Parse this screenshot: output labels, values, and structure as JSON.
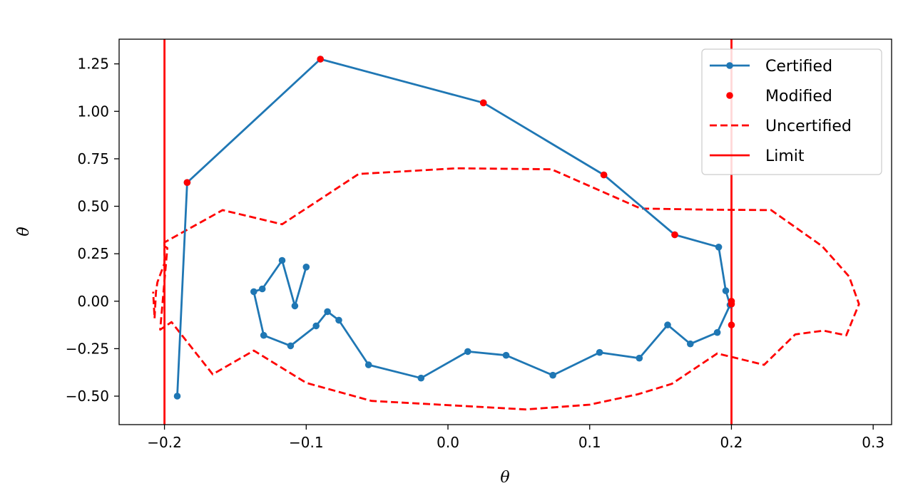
{
  "chart_data": {
    "type": "line",
    "title": "",
    "xlabel": "θ",
    "ylabel": "θ̇",
    "xlim": [
      -0.232,
      0.313
    ],
    "ylim": [
      -0.65,
      1.38
    ],
    "xticks": [
      -0.2,
      -0.1,
      0.0,
      0.1,
      0.2,
      0.3
    ],
    "xtick_labels": [
      "−0.2",
      "−0.1",
      "0.0",
      "0.1",
      "0.2",
      "0.3"
    ],
    "yticks": [
      -0.5,
      -0.25,
      0.0,
      0.25,
      0.5,
      0.75,
      1.0,
      1.25
    ],
    "ytick_labels": [
      "−0.50",
      "−0.25",
      "0.00",
      "0.25",
      "0.50",
      "0.75",
      "1.00",
      "1.25"
    ],
    "grid": false,
    "legend_position": "top-right",
    "series": [
      {
        "name": "Certified",
        "style": "line-with-markers",
        "color": "#1f77b4",
        "points": [
          [
            -0.1,
            0.18
          ],
          [
            -0.108,
            -0.025
          ],
          [
            -0.117,
            0.215
          ],
          [
            -0.131,
            0.065
          ],
          [
            -0.137,
            0.05
          ],
          [
            -0.13,
            -0.18
          ],
          [
            -0.111,
            -0.235
          ],
          [
            -0.093,
            -0.13
          ],
          [
            -0.085,
            -0.055
          ],
          [
            -0.077,
            -0.1
          ],
          [
            -0.056,
            -0.335
          ],
          [
            -0.019,
            -0.405
          ],
          [
            0.014,
            -0.265
          ],
          [
            0.041,
            -0.285
          ],
          [
            0.074,
            -0.39
          ],
          [
            0.107,
            -0.27
          ],
          [
            0.135,
            -0.3
          ],
          [
            0.155,
            -0.125
          ],
          [
            0.171,
            -0.225
          ],
          [
            0.19,
            -0.165
          ],
          [
            0.199,
            -0.02
          ],
          [
            0.196,
            0.055
          ],
          [
            0.191,
            0.285
          ],
          [
            0.16,
            0.35
          ],
          [
            0.11,
            0.665
          ],
          [
            0.025,
            1.045
          ],
          [
            -0.09,
            1.275
          ],
          [
            -0.184,
            0.625
          ],
          [
            -0.191,
            -0.5
          ]
        ]
      },
      {
        "name": "Modified",
        "style": "markers",
        "color": "#ff0000",
        "points": [
          [
            0.16,
            0.35
          ],
          [
            0.11,
            0.665
          ],
          [
            0.025,
            1.045
          ],
          [
            -0.09,
            1.275
          ],
          [
            -0.184,
            0.625
          ],
          [
            0.2,
            0.0
          ],
          [
            0.2,
            -0.015
          ],
          [
            0.2,
            -0.125
          ]
        ]
      },
      {
        "name": "Uncertified",
        "style": "dashed",
        "color": "#ff0000",
        "points": [
          [
            -0.2,
            0.3
          ],
          [
            -0.2,
            0.29
          ],
          [
            -0.198,
            0.28
          ],
          [
            -0.203,
            -0.15
          ],
          [
            -0.195,
            -0.11
          ],
          [
            -0.166,
            -0.385
          ],
          [
            -0.137,
            -0.26
          ],
          [
            -0.1,
            -0.43
          ],
          [
            -0.054,
            -0.525
          ],
          [
            0.055,
            -0.57
          ],
          [
            0.1,
            -0.545
          ],
          [
            0.134,
            -0.49
          ],
          [
            0.158,
            -0.435
          ],
          [
            0.19,
            -0.275
          ],
          [
            0.223,
            -0.335
          ],
          [
            0.245,
            -0.175
          ],
          [
            0.265,
            -0.155
          ],
          [
            0.281,
            -0.18
          ],
          [
            0.29,
            -0.015
          ],
          [
            0.283,
            0.13
          ],
          [
            0.264,
            0.29
          ],
          [
            0.228,
            0.48
          ],
          [
            0.185,
            0.482
          ],
          [
            0.136,
            0.488
          ],
          [
            0.073,
            0.695
          ],
          [
            0.006,
            0.7
          ],
          [
            -0.063,
            0.67
          ],
          [
            -0.117,
            0.405
          ],
          [
            -0.159,
            0.48
          ],
          [
            -0.2,
            0.31
          ],
          [
            -0.2,
            0.2
          ],
          [
            -0.205,
            0.1
          ],
          [
            -0.206,
            0.05
          ],
          [
            -0.207,
            -0.09
          ],
          [
            -0.208,
            0.05
          ]
        ]
      },
      {
        "name": "Limit",
        "style": "vertical-lines",
        "color": "#ff0000",
        "x_values": [
          -0.2,
          0.2
        ]
      }
    ]
  }
}
